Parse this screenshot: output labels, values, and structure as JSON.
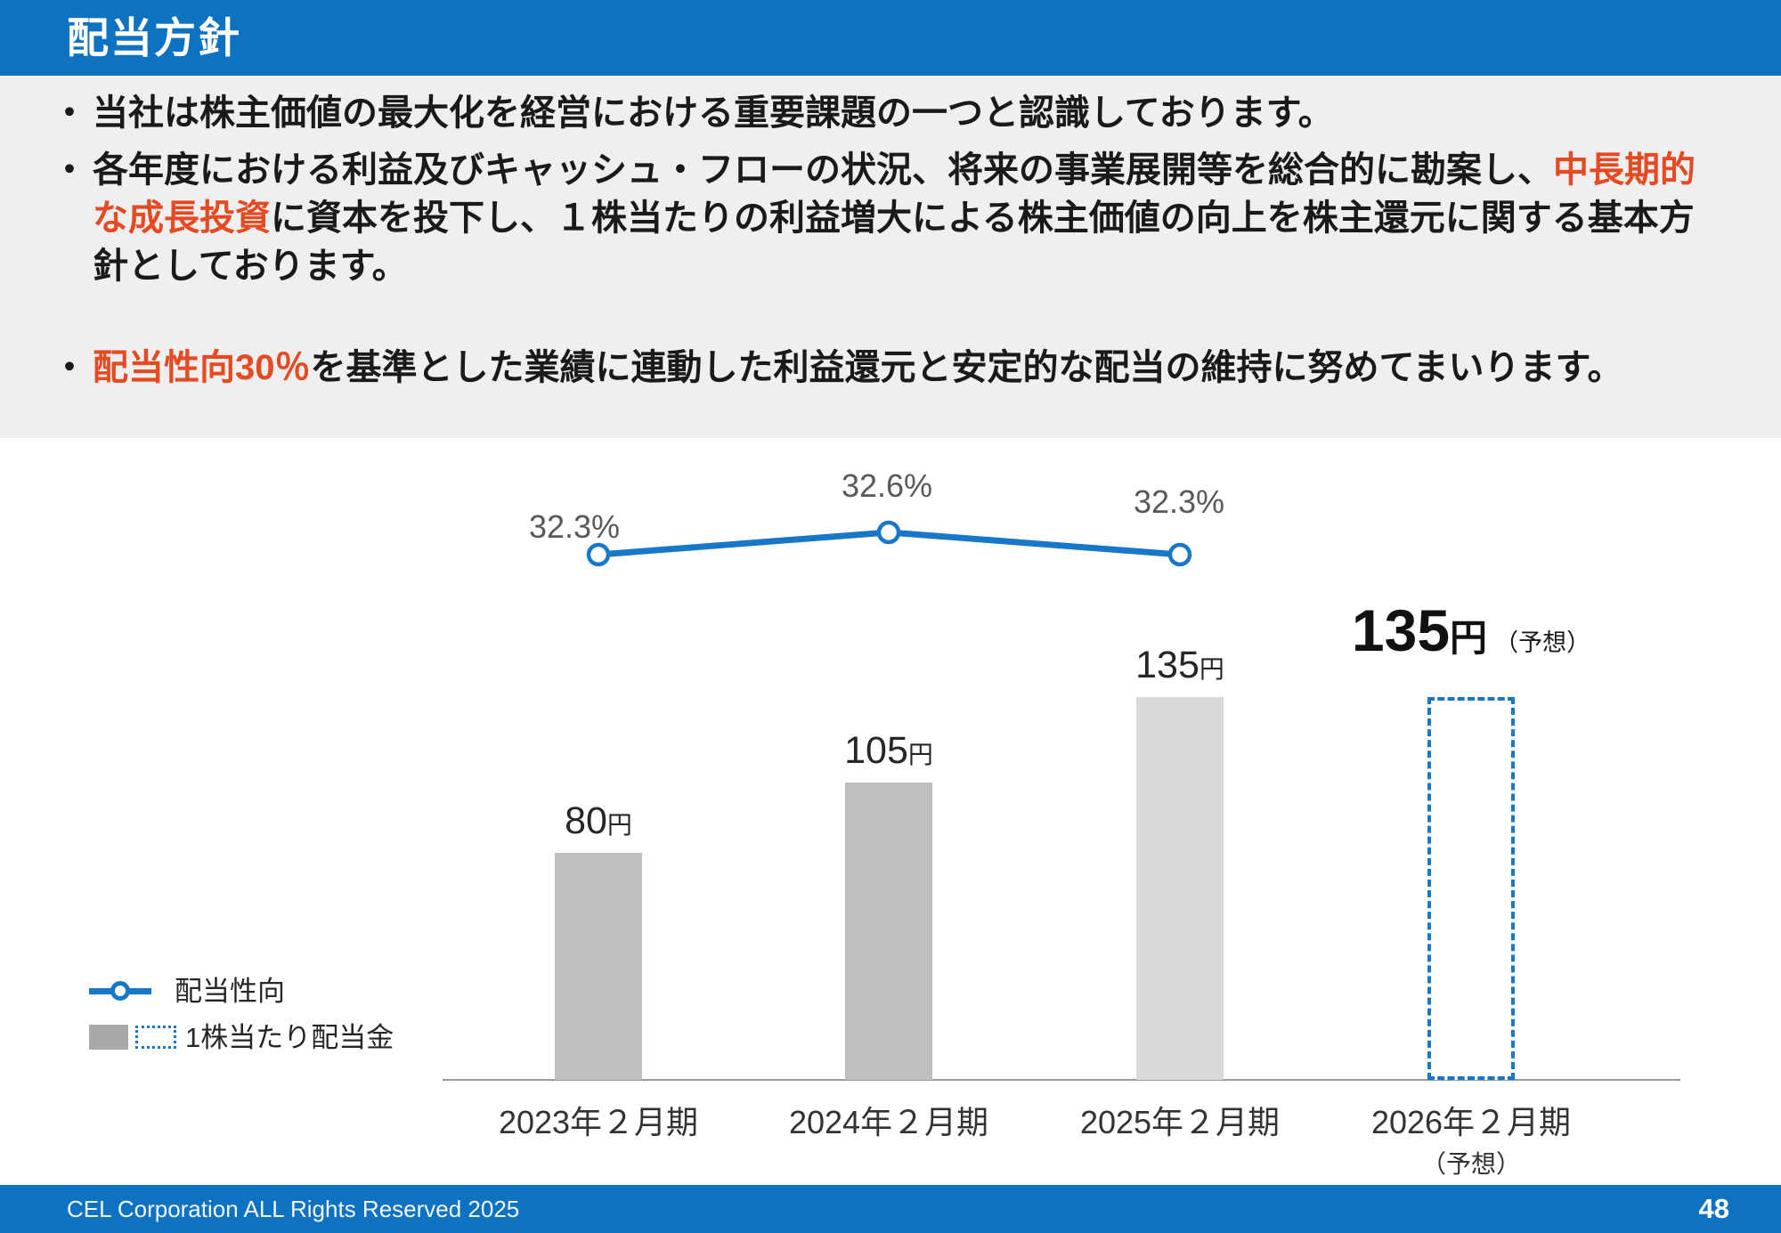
{
  "header": {
    "title": "配当方針"
  },
  "bullets": [
    {
      "pre": "当社は株主価値の最大化を経営における重要課題の一つと認識しております。",
      "hl": "",
      "post": ""
    },
    {
      "pre": "各年度における利益及びキャッシュ・フローの状況、将来の事業展開等を総合的に勘案し、",
      "hl": "中長期的な成長投資",
      "post": "に資本を投下し、１株当たりの利益増大による株主価値の向上を株主還元に関する基本方針としております。"
    },
    {
      "pre": "",
      "hl": "配当性向30％",
      "post": "を基準とした業績に連動した利益還元と安定的な配当の維持に努めてまいります。"
    }
  ],
  "chart_data": {
    "type": "bar",
    "subtype": "combo-bar-line",
    "title": "",
    "categories": [
      "2023年２月期",
      "2024年２月期",
      "2025年２月期",
      "2026年２月期"
    ],
    "category_notes": [
      "",
      "",
      "",
      "（予想）"
    ],
    "bars": [
      {
        "value": 80,
        "num": "80",
        "unit": "円",
        "style": "solid",
        "color": "#bfbfbf",
        "note": ""
      },
      {
        "value": 105,
        "num": "105",
        "unit": "円",
        "style": "solid",
        "color": "#bfbfbf",
        "note": ""
      },
      {
        "value": 135,
        "num": "135",
        "unit": "円",
        "style": "solid",
        "color": "#d9d9d9",
        "note": ""
      },
      {
        "value": 135,
        "num": "135",
        "unit": "円",
        "style": "forecast",
        "color": "",
        "note": "（予想）"
      }
    ],
    "bar_series_name": "1株当たり配当金",
    "bar_unit": "円",
    "line_series_name": "配当性向",
    "line_unit": "%",
    "payout_line": {
      "values": [
        32.3,
        32.6,
        32.3
      ],
      "labels": [
        "32.3%",
        "32.6%",
        "32.3%"
      ]
    },
    "y_axis": "hidden",
    "gridlines": false,
    "legend_position": "bottom-left"
  },
  "legend": {
    "line_label": "配当性向",
    "bar_label": "1株当たり配当金"
  },
  "footer": {
    "copyright": "CEL Corporation ALL Rights Reserved 2025",
    "page": "48"
  },
  "colors": {
    "header_blue": "#0e72c3",
    "accent_orange": "#e54a22",
    "chart_blue": "#1778c9",
    "bar_gray": "#bfbfbf",
    "bar_light_gray": "#d9d9d9",
    "panel_gray": "#efefef"
  }
}
